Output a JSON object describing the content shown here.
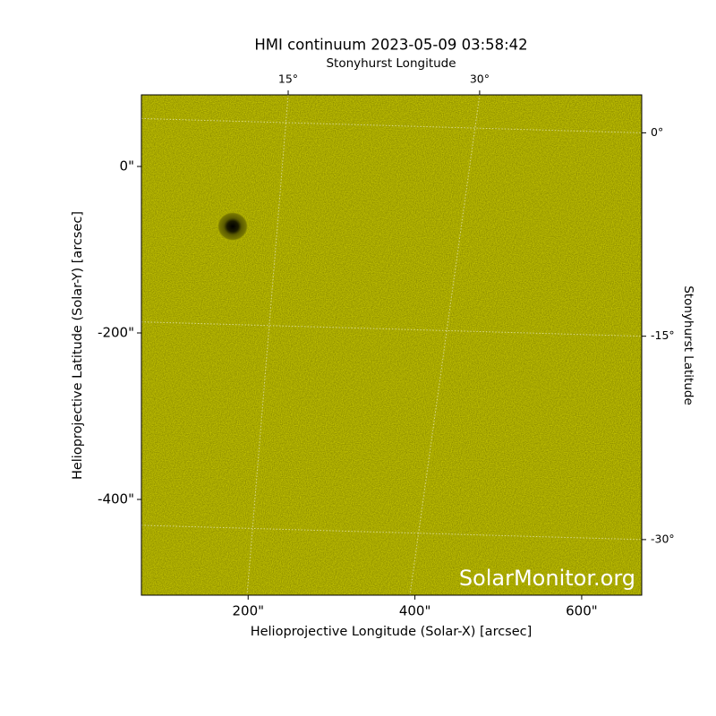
{
  "chart_data": {
    "type": "image",
    "title": "HMI continuum 2023-05-09 03:58:42",
    "xlabel": "Helioprojective Longitude (Solar-X) [arcsec]",
    "ylabel": "Helioprojective Latitude (Solar-Y) [arcsec]",
    "x2label": "Stonyhurst Longitude",
    "y2label": "Stonyhurst Latitude",
    "annotation": "SolarMonitor.org",
    "color": "#cccc00",
    "grid": true,
    "xlim": [
      72,
      672
    ],
    "ylim": [
      -515,
      86
    ],
    "xticks": [
      {
        "value": 200,
        "label": "200\""
      },
      {
        "value": 400,
        "label": "400\""
      },
      {
        "value": 600,
        "label": "600\""
      }
    ],
    "yticks": [
      {
        "value": 0,
        "label": "0\""
      },
      {
        "value": -200,
        "label": "-200\""
      },
      {
        "value": -400,
        "label": "-400\""
      }
    ],
    "x2lim": [
      3.5,
      42.7
    ],
    "x2ticks": [
      {
        "value": 15,
        "label": "15°"
      },
      {
        "value": 30,
        "label": "30°"
      }
    ],
    "y2lim": [
      -34.1,
      2.8
    ],
    "y2ticks": [
      {
        "value": 0,
        "label": "0°"
      },
      {
        "value": -15,
        "label": "-15°"
      },
      {
        "value": -30,
        "label": "-30°"
      }
    ]
  }
}
